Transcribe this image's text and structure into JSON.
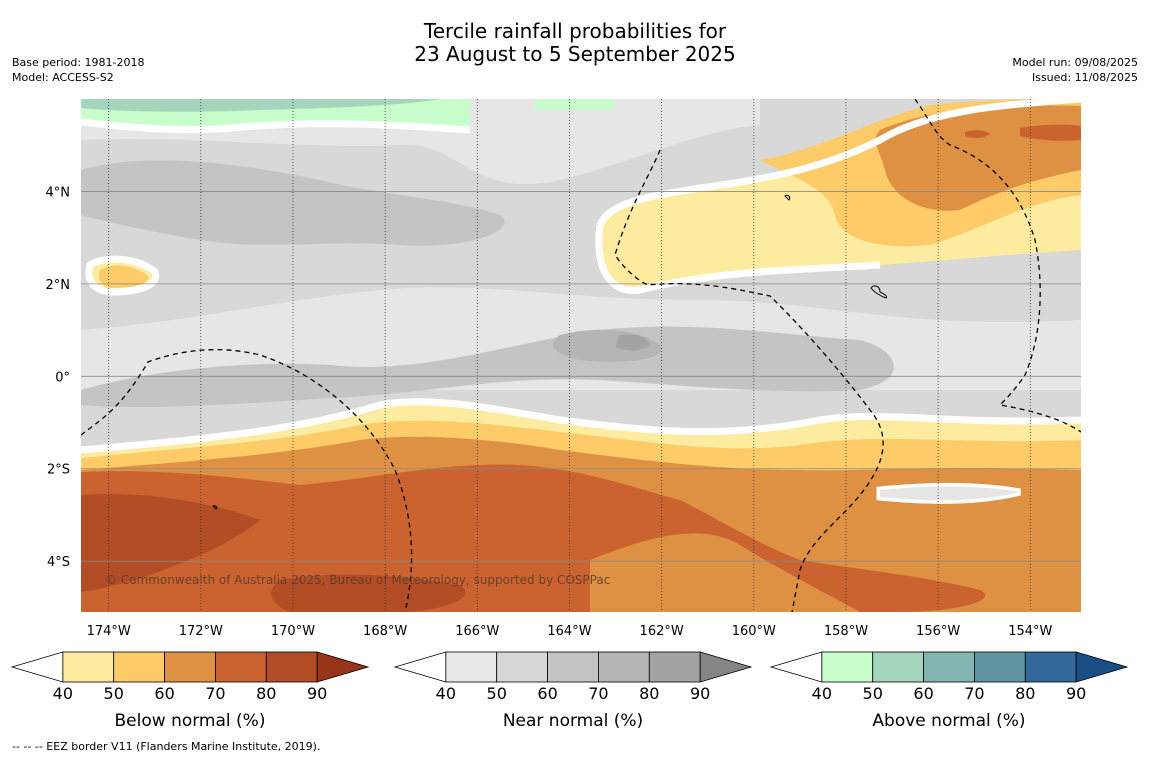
{
  "title": {
    "line1": "Tercile rainfall probabilities for",
    "line2": "23 August to 5 September 2025"
  },
  "meta": {
    "base_period": "Base period: 1981-2018",
    "model": "Model: ACCESS-S2",
    "model_run": "Model run: 09/08/2025",
    "issued": "Issued: 11/08/2025"
  },
  "map": {
    "lon_labels": [
      "174°W",
      "172°W",
      "170°W",
      "168°W",
      "166°W",
      "164°W",
      "162°W",
      "160°W",
      "158°W",
      "156°W",
      "154°W"
    ],
    "lon_values": [
      -174,
      -172,
      -170,
      -168,
      -166,
      -164,
      -162,
      -160,
      -158,
      -156,
      -154
    ],
    "lat_labels": [
      "4°N",
      "2°N",
      "0°",
      "2°S",
      "4°S"
    ],
    "lat_values": [
      4,
      2,
      0,
      -2,
      -4
    ],
    "copyright": "© Commonwealth of Australia 2025, Bureau of Meteorology, supported by COSPPac",
    "colors": {
      "near_bg": "#d8d8d8",
      "near_40": "#e6e6e6",
      "near_60": "#c4c4c4",
      "near_70": "#b5b5b5",
      "near_80": "#a3a3a3",
      "below_40": "#fdeb9f",
      "below_50": "#fdcb68",
      "below_60": "#df9143",
      "below_70": "#cb6330",
      "below_80": "#b34d25",
      "above_40": "#c8fdcc",
      "above_50": "#a4d6bd"
    }
  },
  "colorbars": [
    {
      "label": "Below normal (%)",
      "ticks": [
        "40",
        "50",
        "60",
        "70",
        "80",
        "90"
      ],
      "colors": [
        "#fdeb9f",
        "#fdcb68",
        "#df9143",
        "#cb6330",
        "#b34d25"
      ],
      "end_color": "#973519"
    },
    {
      "label": "Near normal (%)",
      "ticks": [
        "40",
        "50",
        "60",
        "70",
        "80",
        "90"
      ],
      "colors": [
        "#e8e8e8",
        "#d7d7d7",
        "#c4c4c4",
        "#b5b5b5",
        "#a3a3a3"
      ],
      "end_color": "#858585"
    },
    {
      "label": "Above normal (%)",
      "ticks": [
        "40",
        "50",
        "60",
        "70",
        "80",
        "90"
      ],
      "colors": [
        "#c8fdcc",
        "#a4d6bd",
        "#83b6b0",
        "#5f94a0",
        "#34699b"
      ],
      "end_color": "#194f84"
    }
  ],
  "footnote": "-- -- -- EEZ border V11 (Flanders Marine Institute, 2019)."
}
